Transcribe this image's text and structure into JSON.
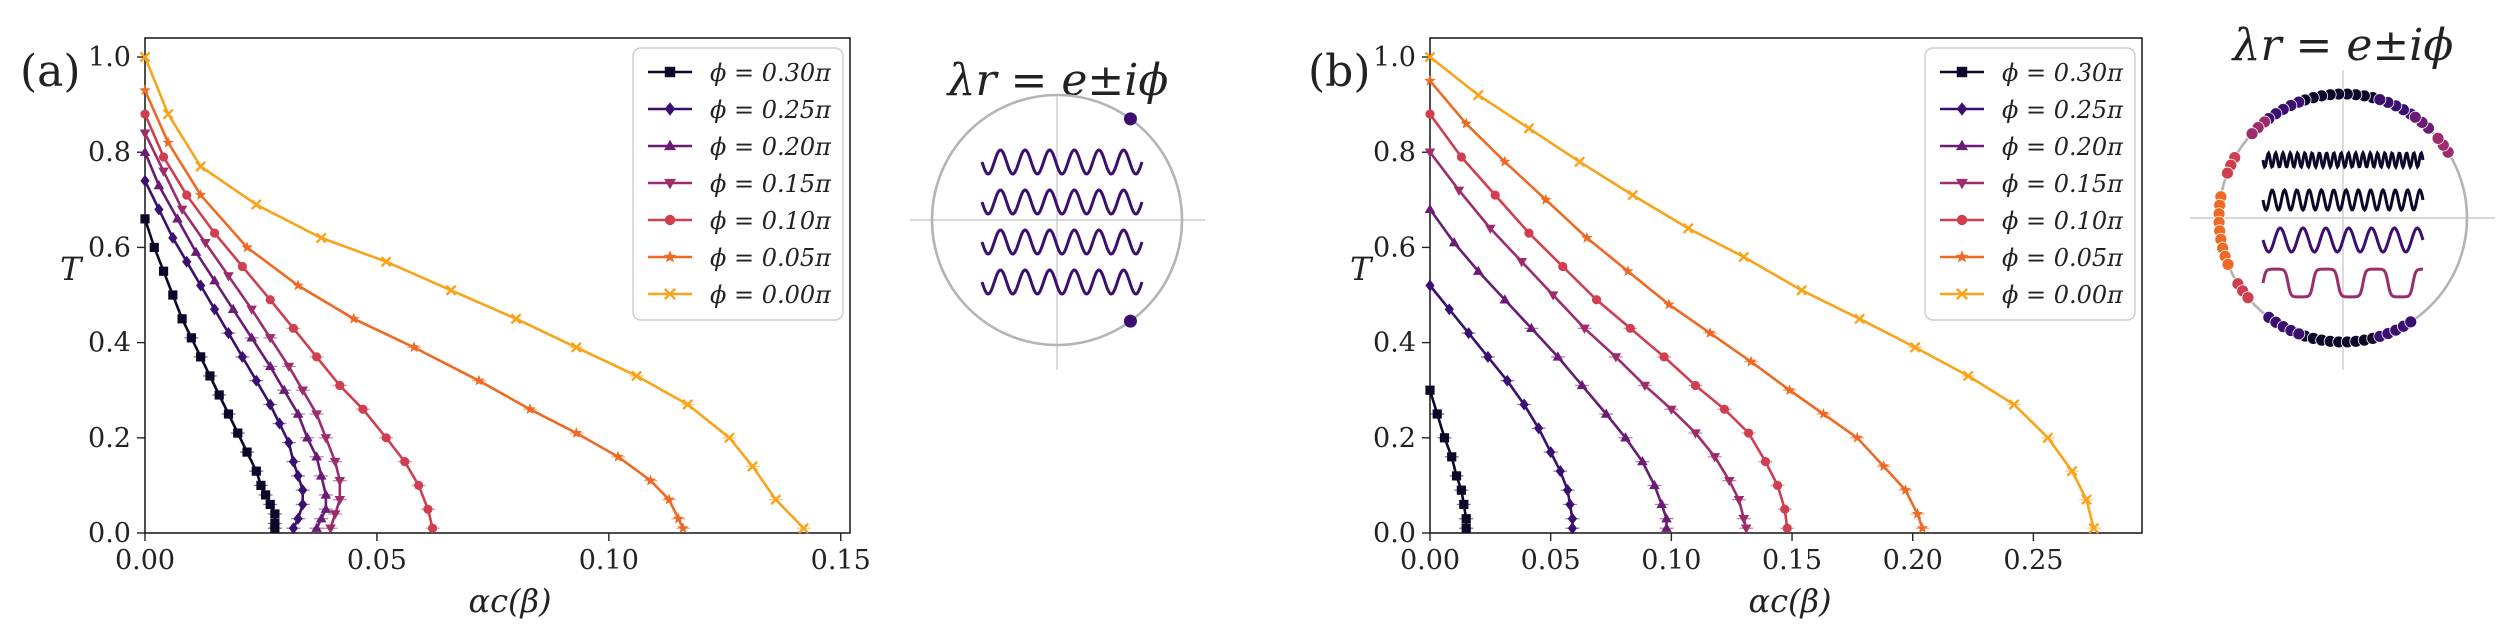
{
  "colors": {
    "phi_030": "#0d0829",
    "phi_025": "#3b0f70",
    "phi_020": "#6a1b73",
    "phi_015": "#9c2c6c",
    "phi_010": "#d03f4f",
    "phi_005": "#ee6a24",
    "phi_000": "#f9a31b",
    "circle": "#b4b4b4",
    "axis": "#222222"
  },
  "chart_data": [
    {
      "type": "line",
      "panel_label": "(a)",
      "xlabel": "αc(β)",
      "ylabel": "T",
      "xlim": [
        0,
        0.152
      ],
      "ylim": [
        0,
        1.04
      ],
      "xticks": [
        "0.00",
        "0.05",
        "0.10",
        "0.15"
      ],
      "xtick_values": [
        0,
        0.05,
        0.1,
        0.15
      ],
      "yticks": [
        "0.0",
        "0.2",
        "0.4",
        "0.6",
        "0.8",
        "1.0"
      ],
      "ytick_values": [
        0,
        0.2,
        0.4,
        0.6,
        0.8,
        1.0
      ],
      "grid": false,
      "legend_position": "top-right",
      "legend": [
        "ϕ = 0.30π",
        "ϕ = 0.25π",
        "ϕ = 0.20π",
        "ϕ = 0.15π",
        "ϕ = 0.10π",
        "ϕ = 0.05π",
        "ϕ = 0.00π"
      ],
      "inset": {
        "title": "λr = e±iϕ",
        "eigenvalue_angles_pi": [
          0.3,
          -0.3
        ]
      },
      "series": [
        {
          "color_key": "phi_030",
          "marker": "square",
          "x": [
            0,
            0.002,
            0.004,
            0.006,
            0.008,
            0.01,
            0.012,
            0.014,
            0.016,
            0.018,
            0.02,
            0.022,
            0.024,
            0.025,
            0.026,
            0.027,
            0.028,
            0.028,
            0.028
          ],
          "y": [
            0.66,
            0.6,
            0.55,
            0.5,
            0.45,
            0.41,
            0.37,
            0.33,
            0.29,
            0.25,
            0.21,
            0.17,
            0.13,
            0.1,
            0.08,
            0.06,
            0.04,
            0.02,
            0.01
          ]
        },
        {
          "color_key": "phi_025",
          "marker": "diamond",
          "x": [
            0,
            0.003,
            0.006,
            0.009,
            0.012,
            0.015,
            0.018,
            0.021,
            0.024,
            0.027,
            0.029,
            0.031,
            0.032,
            0.033,
            0.034,
            0.034,
            0.033,
            0.032
          ],
          "y": [
            0.74,
            0.68,
            0.62,
            0.57,
            0.52,
            0.47,
            0.42,
            0.37,
            0.32,
            0.27,
            0.23,
            0.19,
            0.15,
            0.12,
            0.09,
            0.06,
            0.03,
            0.01
          ]
        },
        {
          "color_key": "phi_020",
          "marker": "triangle-up",
          "x": [
            0,
            0.003,
            0.007,
            0.011,
            0.015,
            0.019,
            0.023,
            0.027,
            0.03,
            0.033,
            0.035,
            0.037,
            0.038,
            0.039,
            0.039,
            0.038,
            0.037
          ],
          "y": [
            0.8,
            0.73,
            0.66,
            0.59,
            0.53,
            0.47,
            0.41,
            0.35,
            0.3,
            0.25,
            0.2,
            0.16,
            0.12,
            0.08,
            0.05,
            0.03,
            0.01
          ]
        },
        {
          "color_key": "phi_015",
          "marker": "triangle-down",
          "x": [
            0,
            0.004,
            0.008,
            0.013,
            0.018,
            0.023,
            0.027,
            0.031,
            0.034,
            0.037,
            0.039,
            0.041,
            0.042,
            0.042,
            0.041,
            0.04
          ],
          "y": [
            0.84,
            0.76,
            0.68,
            0.61,
            0.54,
            0.47,
            0.41,
            0.35,
            0.3,
            0.25,
            0.2,
            0.15,
            0.11,
            0.07,
            0.04,
            0.01
          ]
        },
        {
          "color_key": "phi_010",
          "marker": "circle",
          "x": [
            0,
            0.004,
            0.009,
            0.015,
            0.021,
            0.027,
            0.032,
            0.037,
            0.042,
            0.047,
            0.052,
            0.056,
            0.059,
            0.061,
            0.062
          ],
          "y": [
            0.88,
            0.79,
            0.71,
            0.63,
            0.56,
            0.49,
            0.43,
            0.37,
            0.31,
            0.26,
            0.2,
            0.15,
            0.1,
            0.05,
            0.01
          ]
        },
        {
          "color_key": "phi_005",
          "marker": "star",
          "x": [
            0,
            0.005,
            0.012,
            0.022,
            0.033,
            0.045,
            0.058,
            0.072,
            0.083,
            0.093,
            0.102,
            0.109,
            0.113,
            0.115,
            0.116
          ],
          "y": [
            0.93,
            0.82,
            0.71,
            0.6,
            0.52,
            0.45,
            0.39,
            0.32,
            0.26,
            0.21,
            0.16,
            0.11,
            0.07,
            0.03,
            0.01
          ]
        },
        {
          "color_key": "phi_000",
          "marker": "x",
          "x": [
            0,
            0.005,
            0.012,
            0.024,
            0.038,
            0.052,
            0.066,
            0.08,
            0.093,
            0.106,
            0.117,
            0.126,
            0.131,
            0.136,
            0.142
          ],
          "y": [
            1.0,
            0.88,
            0.77,
            0.69,
            0.62,
            0.57,
            0.51,
            0.45,
            0.39,
            0.33,
            0.27,
            0.2,
            0.14,
            0.07,
            0.01
          ]
        }
      ]
    },
    {
      "type": "line",
      "panel_label": "(b)",
      "xlabel": "αc(β)",
      "ylabel": "T",
      "xlim": [
        0,
        0.295
      ],
      "ylim": [
        0,
        1.04
      ],
      "xticks": [
        "0.00",
        "0.05",
        "0.10",
        "0.15",
        "0.20",
        "0.25"
      ],
      "xtick_values": [
        0,
        0.05,
        0.1,
        0.15,
        0.2,
        0.25
      ],
      "yticks": [
        "0.0",
        "0.2",
        "0.4",
        "0.6",
        "0.8",
        "1.0"
      ],
      "ytick_values": [
        0,
        0.2,
        0.4,
        0.6,
        0.8,
        1.0
      ],
      "grid": false,
      "legend_position": "top-right",
      "legend": [
        "ϕ = 0.30π",
        "ϕ = 0.25π",
        "ϕ = 0.20π",
        "ϕ = 0.15π",
        "ϕ = 0.10π",
        "ϕ = 0.05π",
        "ϕ = 0.00π"
      ],
      "inset": {
        "title": "λr = e±iϕ",
        "wave_colors": [
          "phi_030",
          "phi_025",
          "phi_015",
          "phi_010"
        ]
      },
      "series": [
        {
          "color_key": "phi_030",
          "marker": "square",
          "x": [
            0,
            0.003,
            0.006,
            0.009,
            0.011,
            0.013,
            0.014,
            0.015,
            0.015
          ],
          "y": [
            0.3,
            0.25,
            0.2,
            0.16,
            0.12,
            0.09,
            0.06,
            0.03,
            0.01
          ]
        },
        {
          "color_key": "phi_025",
          "marker": "diamond",
          "x": [
            0,
            0.008,
            0.016,
            0.024,
            0.032,
            0.039,
            0.045,
            0.05,
            0.054,
            0.057,
            0.058,
            0.059,
            0.059
          ],
          "y": [
            0.52,
            0.47,
            0.42,
            0.37,
            0.32,
            0.27,
            0.22,
            0.17,
            0.13,
            0.09,
            0.06,
            0.03,
            0.01
          ]
        },
        {
          "color_key": "phi_020",
          "marker": "triangle-up",
          "x": [
            0,
            0.01,
            0.02,
            0.031,
            0.042,
            0.053,
            0.063,
            0.073,
            0.081,
            0.088,
            0.093,
            0.096,
            0.098,
            0.098
          ],
          "y": [
            0.68,
            0.61,
            0.55,
            0.49,
            0.43,
            0.37,
            0.31,
            0.25,
            0.2,
            0.15,
            0.1,
            0.06,
            0.03,
            0.01
          ]
        },
        {
          "color_key": "phi_015",
          "marker": "triangle-down",
          "x": [
            0,
            0.012,
            0.025,
            0.038,
            0.051,
            0.064,
            0.077,
            0.089,
            0.1,
            0.11,
            0.118,
            0.124,
            0.128,
            0.13,
            0.131
          ],
          "y": [
            0.8,
            0.72,
            0.64,
            0.57,
            0.5,
            0.43,
            0.37,
            0.31,
            0.26,
            0.21,
            0.16,
            0.11,
            0.07,
            0.03,
            0.01
          ]
        },
        {
          "color_key": "phi_010",
          "marker": "circle",
          "x": [
            0,
            0.013,
            0.027,
            0.041,
            0.055,
            0.069,
            0.083,
            0.097,
            0.11,
            0.122,
            0.132,
            0.139,
            0.144,
            0.147,
            0.148
          ],
          "y": [
            0.88,
            0.79,
            0.71,
            0.63,
            0.56,
            0.49,
            0.43,
            0.37,
            0.31,
            0.26,
            0.21,
            0.15,
            0.1,
            0.05,
            0.01
          ]
        },
        {
          "color_key": "phi_005",
          "marker": "star",
          "x": [
            0,
            0.015,
            0.031,
            0.048,
            0.065,
            0.082,
            0.099,
            0.116,
            0.133,
            0.149,
            0.163,
            0.177,
            0.188,
            0.197,
            0.202,
            0.204
          ],
          "y": [
            0.95,
            0.86,
            0.78,
            0.7,
            0.62,
            0.55,
            0.48,
            0.42,
            0.36,
            0.3,
            0.25,
            0.2,
            0.14,
            0.09,
            0.04,
            0.01
          ]
        },
        {
          "color_key": "phi_000",
          "marker": "x",
          "x": [
            0,
            0.02,
            0.041,
            0.062,
            0.084,
            0.107,
            0.13,
            0.154,
            0.178,
            0.201,
            0.223,
            0.242,
            0.256,
            0.266,
            0.272,
            0.275
          ],
          "y": [
            1.0,
            0.92,
            0.85,
            0.78,
            0.71,
            0.64,
            0.58,
            0.51,
            0.45,
            0.39,
            0.33,
            0.27,
            0.2,
            0.13,
            0.07,
            0.01
          ]
        }
      ]
    }
  ]
}
